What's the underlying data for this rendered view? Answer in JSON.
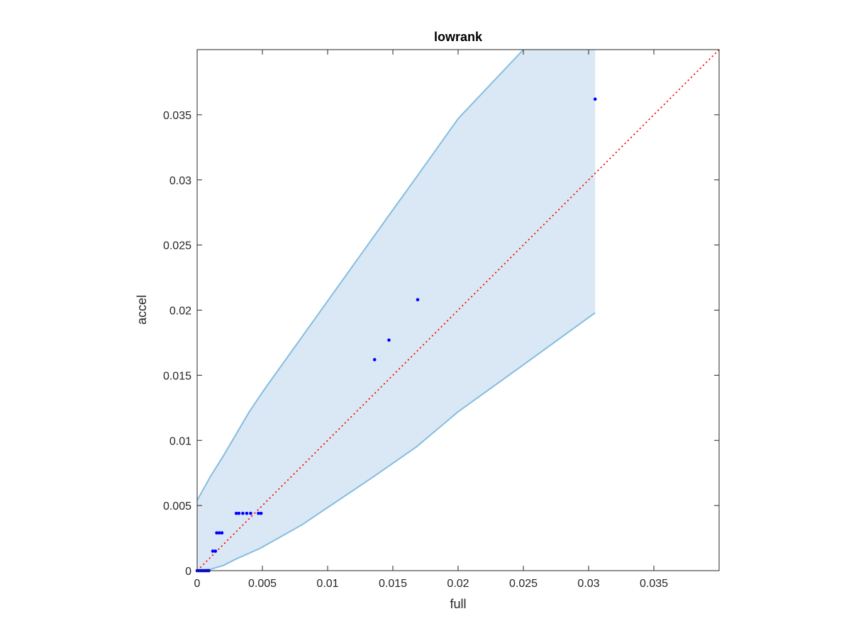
{
  "chart_data": {
    "type": "scatter",
    "title": "lowrank",
    "xlabel": "full",
    "ylabel": "accel",
    "xlim": [
      0,
      0.04
    ],
    "ylim": [
      0,
      0.04
    ],
    "x_ticks": [
      0,
      0.005,
      0.01,
      0.015,
      0.02,
      0.025,
      0.03,
      0.035
    ],
    "x_tick_labels": [
      "0",
      "0.005",
      "0.01",
      "0.015",
      "0.02",
      "0.025",
      "0.03",
      "0.035"
    ],
    "y_ticks": [
      0,
      0.005,
      0.01,
      0.015,
      0.02,
      0.025,
      0.03,
      0.035
    ],
    "y_tick_labels": [
      "0",
      "0.005",
      "0.01",
      "0.015",
      "0.02",
      "0.025",
      "0.03",
      "0.035"
    ],
    "grid": false,
    "band": {
      "color": "#d9e8f4",
      "edge_color": "#85bde0",
      "upper": [
        [
          0,
          0.0054
        ],
        [
          0.001,
          0.0072
        ],
        [
          0.002,
          0.0088
        ],
        [
          0.003,
          0.0105
        ],
        [
          0.004,
          0.0122
        ],
        [
          0.005,
          0.0137
        ],
        [
          0.0135,
          0.0256
        ],
        [
          0.015,
          0.0277
        ],
        [
          0.0168,
          0.0302
        ],
        [
          0.02,
          0.0347
        ],
        [
          0.025,
          0.04
        ],
        [
          0.0305,
          0.04
        ]
      ],
      "lower": [
        [
          0,
          0
        ],
        [
          0.001,
          0.0001
        ],
        [
          0.002,
          0.0004
        ],
        [
          0.003,
          0.0009
        ],
        [
          0.0048,
          0.0017
        ],
        [
          0.008,
          0.0035
        ],
        [
          0.0135,
          0.0072
        ],
        [
          0.0168,
          0.0095
        ],
        [
          0.02,
          0.0122
        ],
        [
          0.025,
          0.0158
        ],
        [
          0.0305,
          0.0198
        ]
      ],
      "right_edge_x": 0.0305
    },
    "reference_line": {
      "style": "dotted",
      "color": "#ff0000",
      "points": [
        [
          0,
          0
        ],
        [
          0.04,
          0.04
        ]
      ]
    },
    "series": [
      {
        "color": "#0000ff",
        "marker": "dot",
        "points": [
          [
            0,
            0
          ],
          [
            0.0001,
            0
          ],
          [
            0.0002,
            0
          ],
          [
            0.0003,
            0
          ],
          [
            0.0004,
            0
          ],
          [
            0.0005,
            0
          ],
          [
            0.0006,
            0
          ],
          [
            0.0007,
            0
          ],
          [
            0.0008,
            0
          ],
          [
            0.0009,
            0
          ],
          [
            0.0012,
            0.0015
          ],
          [
            0.0014,
            0.0015
          ],
          [
            0.0015,
            0.0029
          ],
          [
            0.0017,
            0.0029
          ],
          [
            0.0019,
            0.0029
          ],
          [
            0.003,
            0.0044
          ],
          [
            0.0032,
            0.0044
          ],
          [
            0.0035,
            0.0044
          ],
          [
            0.0038,
            0.0044
          ],
          [
            0.0041,
            0.0044
          ],
          [
            0.0047,
            0.0044
          ],
          [
            0.0049,
            0.0044
          ],
          [
            0.0136,
            0.0162
          ],
          [
            0.0147,
            0.0177
          ],
          [
            0.0169,
            0.0208
          ],
          [
            0.0305,
            0.0362
          ]
        ]
      }
    ]
  }
}
